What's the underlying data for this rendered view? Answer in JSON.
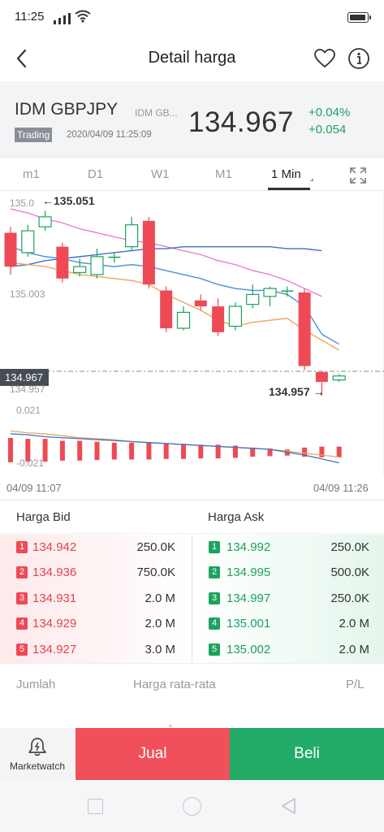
{
  "status_bar": {
    "time": "11:25",
    "icons": [
      "signal-icon",
      "wifi-icon",
      "battery-icon"
    ]
  },
  "header": {
    "title": "Detail harga",
    "icons": [
      "back-arrow-icon",
      "heart-icon",
      "info-icon"
    ]
  },
  "instrument": {
    "name": "IDM GBPJPY",
    "sub_name": "IDM GB...",
    "status_badge": "Trading",
    "datetime": "2020/04/09 11:25:09",
    "price": "134.967",
    "change_pct": "+0.04%",
    "change_abs": "+0.054"
  },
  "timeframes": {
    "items": [
      "m1",
      "D1",
      "W1",
      "M1",
      "1 Min"
    ],
    "active": "1 Min"
  },
  "chart_data": {
    "type": "candlestick",
    "price_labels": {
      "top": "135.0",
      "max_marker": "135.051",
      "mid": "135.003",
      "current": "134.967",
      "low_axis": "134.957",
      "min_marker": "134.957",
      "vol_top": "0.021",
      "vol_bottom": "-0.021"
    },
    "ylim": [
      134.953,
      135.058
    ],
    "candles": [
      {
        "o": 135.039,
        "c": 135.022,
        "h": 135.042,
        "l": 135.018
      },
      {
        "o": 135.029,
        "c": 135.04,
        "h": 135.043,
        "l": 135.027
      },
      {
        "o": 135.042,
        "c": 135.047,
        "h": 135.05,
        "l": 135.04
      },
      {
        "o": 135.032,
        "c": 135.016,
        "h": 135.034,
        "l": 135.014
      },
      {
        "o": 135.019,
        "c": 135.022,
        "h": 135.026,
        "l": 135.017
      },
      {
        "o": 135.018,
        "c": 135.027,
        "h": 135.031,
        "l": 135.016
      },
      {
        "o": 135.027,
        "c": 135.027,
        "h": 135.029,
        "l": 135.024
      },
      {
        "o": 135.032,
        "c": 135.043,
        "h": 135.047,
        "l": 135.03
      },
      {
        "o": 135.045,
        "c": 135.013,
        "h": 135.047,
        "l": 135.011
      },
      {
        "o": 135.01,
        "c": 134.991,
        "h": 135.012,
        "l": 134.989
      },
      {
        "o": 134.991,
        "c": 134.999,
        "h": 135.002,
        "l": 134.99
      },
      {
        "o": 135.005,
        "c": 135.002,
        "h": 135.008,
        "l": 135.0
      },
      {
        "o": 135.002,
        "c": 134.989,
        "h": 135.006,
        "l": 134.987
      },
      {
        "o": 134.992,
        "c": 135.002,
        "h": 135.004,
        "l": 134.99
      },
      {
        "o": 135.003,
        "c": 135.008,
        "h": 135.013,
        "l": 135.001
      },
      {
        "o": 135.007,
        "c": 135.011,
        "h": 135.012,
        "l": 135.002
      },
      {
        "o": 135.01,
        "c": 135.01,
        "h": 135.012,
        "l": 135.007
      },
      {
        "o": 135.009,
        "c": 134.972,
        "h": 135.011,
        "l": 134.97
      },
      {
        "o": 134.969,
        "c": 134.964,
        "h": 134.969,
        "l": 134.957
      },
      {
        "o": 134.965,
        "c": 134.967,
        "h": 134.968,
        "l": 134.964
      }
    ],
    "ma_blue": [
      135.032,
      135.029,
      135.027,
      135.026,
      135.024,
      135.023,
      135.022,
      135.023,
      135.022,
      135.02,
      135.018,
      135.016,
      135.013,
      135.011,
      135.01,
      135.01,
      135.008,
      135.002,
      134.988,
      134.983
    ],
    "ma_orange": [
      135.024,
      135.023,
      135.022,
      135.02,
      135.018,
      135.017,
      135.016,
      135.015,
      135.013,
      135.008,
      135.004,
      135.0,
      134.995,
      134.992,
      134.994,
      134.995,
      134.996,
      134.99,
      134.985,
      134.98
    ],
    "ma_pink": [
      135.051,
      135.049,
      135.046,
      135.044,
      135.041,
      135.039,
      135.037,
      135.035,
      135.034,
      135.032,
      135.03,
      135.028,
      135.025,
      135.023,
      135.02,
      135.018,
      135.015,
      135.011,
      135.007
    ],
    "ma_long_blue": [
      135.022,
      135.023,
      135.025,
      135.026,
      135.027,
      135.028,
      135.029,
      135.03,
      135.031,
      135.031,
      135.032,
      135.032,
      135.032,
      135.032,
      135.032,
      135.032,
      135.031,
      135.031,
      135.03
    ],
    "volume_bars": [
      0.016,
      0.015,
      0.015,
      0.013,
      0.013,
      0.012,
      0.011,
      0.011,
      0.011,
      0.01,
      0.01,
      0.009,
      0.009,
      0.008,
      0.006,
      0.005,
      0.004,
      0.006,
      0.007,
      0.007
    ],
    "vol_line_blue": [
      0.016,
      0.015,
      0.013,
      0.012,
      0.011,
      0.01,
      0.009,
      0.008,
      0.007,
      0.006,
      0.005,
      0.004,
      0.003,
      0.002,
      0.001,
      0.0,
      -0.003,
      -0.006,
      -0.01,
      -0.014
    ],
    "vol_line_orange": [
      0.019,
      0.017,
      0.016,
      0.014,
      0.012,
      0.011,
      0.01,
      0.008,
      0.007,
      0.006,
      0.005,
      0.004,
      0.003,
      0.002,
      0.001,
      0.0,
      -0.002,
      -0.004,
      -0.006,
      -0.008
    ],
    "x_start": "04/09 11:07",
    "x_end": "04/09 11:26",
    "colors": {
      "up": "#1ba35e",
      "down": "#ee4a55",
      "ma_blue": "#4a90d9",
      "ma_orange": "#f0a35e",
      "ma_pink": "#e86bd0"
    }
  },
  "order_book": {
    "bid_header": "Harga Bid",
    "ask_header": "Harga Ask",
    "bids": [
      {
        "rank": "1",
        "price": "134.942",
        "volume": "250.0K"
      },
      {
        "rank": "2",
        "price": "134.936",
        "volume": "750.0K"
      },
      {
        "rank": "3",
        "price": "134.931",
        "volume": "2.0 M"
      },
      {
        "rank": "4",
        "price": "134.929",
        "volume": "2.0 M"
      },
      {
        "rank": "5",
        "price": "134.927",
        "volume": "3.0 M"
      }
    ],
    "asks": [
      {
        "rank": "1",
        "price": "134.992",
        "volume": "250.0K"
      },
      {
        "rank": "2",
        "price": "134.995",
        "volume": "500.0K"
      },
      {
        "rank": "3",
        "price": "134.997",
        "volume": "250.0K"
      },
      {
        "rank": "4",
        "price": "135.001",
        "volume": "2.0 M"
      },
      {
        "rank": "5",
        "price": "135.002",
        "volume": "2.0 M"
      }
    ]
  },
  "positions": {
    "col_amount": "Jumlah",
    "col_avg": "Harga rata-rata",
    "col_pl": "P/L"
  },
  "actions": {
    "marketwatch": "Marketwatch",
    "sell": "Jual",
    "buy": "Beli"
  }
}
